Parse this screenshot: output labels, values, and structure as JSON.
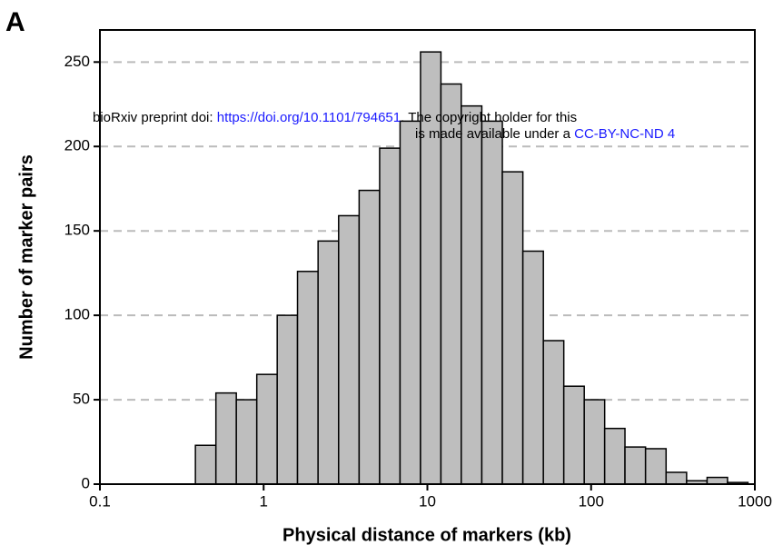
{
  "panel_label": "A",
  "watermark": {
    "line1_prefix": "bioRxiv preprint doi: ",
    "doi_link": "https://doi.org/10.1101/794651",
    "line1_suffix": ". The copyright holder for this",
    "line2_prefix": "is made available under a ",
    "license_link": "CC-BY-NC-ND 4"
  },
  "chart_data": {
    "type": "histogram",
    "xlabel": "Physical distance of markers (kb)",
    "ylabel": "Number of marker pairs",
    "bins": [
      0.383,
      0.511,
      0.681,
      0.908,
      1.21,
      1.61,
      2.15,
      2.87,
      3.83,
      5.11,
      6.81,
      9.08,
      12.1,
      16.1,
      21.5,
      28.7,
      38.3,
      51.1,
      68.1,
      90.8,
      121,
      161,
      215,
      287,
      383,
      511,
      681,
      908
    ],
    "counts": [
      23,
      54,
      50,
      65,
      100,
      126,
      144,
      159,
      174,
      199,
      215,
      256,
      237,
      224,
      215,
      185,
      138,
      85,
      58,
      50,
      33,
      22,
      21,
      7,
      2,
      4,
      1
    ],
    "color": "#bebebe",
    "xlim": [
      0.1,
      1000
    ],
    "xticks": [
      0.1,
      1,
      10,
      100,
      1000
    ],
    "xlog": true,
    "ylim": [
      0,
      269
    ],
    "yticks": [
      0,
      50,
      100,
      150,
      200,
      250
    ],
    "grid": true
  }
}
